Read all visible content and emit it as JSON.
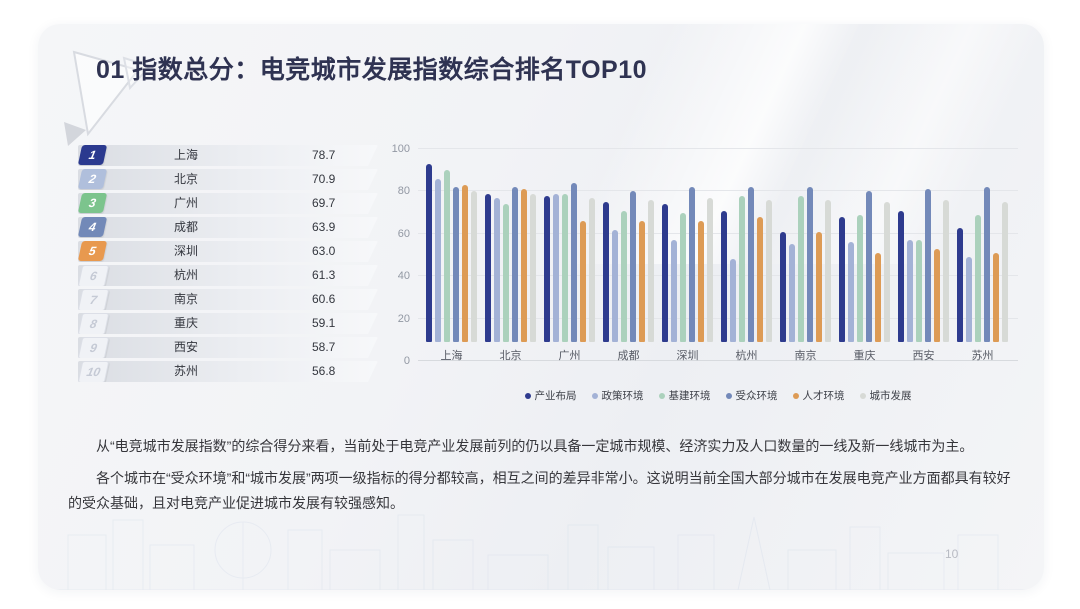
{
  "title": "01 指数总分：电竞城市发展指数综合排名TOP10",
  "page": {
    "number": "10"
  },
  "ranking": {
    "rows": [
      {
        "rank": "1",
        "city": "上海",
        "score": "78.7",
        "badge_bg": "#2b3a8f",
        "badge_fg": "#ffffff"
      },
      {
        "rank": "2",
        "city": "北京",
        "score": "70.9",
        "badge_bg": "#b0bfdc",
        "badge_fg": "#ffffff"
      },
      {
        "rank": "3",
        "city": "广州",
        "score": "69.7",
        "badge_bg": "#7cc48d",
        "badge_fg": "#ffffff"
      },
      {
        "rank": "4",
        "city": "成都",
        "score": "63.9",
        "badge_bg": "#7289b8",
        "badge_fg": "#ffffff"
      },
      {
        "rank": "5",
        "city": "深圳",
        "score": "63.0",
        "badge_bg": "#e8994f",
        "badge_fg": "#ffffff"
      },
      {
        "rank": "6",
        "city": "杭州",
        "score": "61.3",
        "badge_bg": "#f0f2f6",
        "badge_fg": "#c5cad5"
      },
      {
        "rank": "7",
        "city": "南京",
        "score": "60.6",
        "badge_bg": "#f0f2f6",
        "badge_fg": "#c5cad5"
      },
      {
        "rank": "8",
        "city": "重庆",
        "score": "59.1",
        "badge_bg": "#f0f2f6",
        "badge_fg": "#c5cad5"
      },
      {
        "rank": "9",
        "city": "西安",
        "score": "58.7",
        "badge_bg": "#f0f2f6",
        "badge_fg": "#c5cad5"
      },
      {
        "rank": "10",
        "city": "苏州",
        "score": "56.8",
        "badge_bg": "#f0f2f6",
        "badge_fg": "#c5cad5"
      }
    ]
  },
  "chart_data": {
    "type": "bar",
    "title": "",
    "categories": [
      "上海",
      "北京",
      "广州",
      "成都",
      "深圳",
      "杭州",
      "南京",
      "重庆",
      "西安",
      "苏州"
    ],
    "series": [
      {
        "name": "产业布局",
        "color": "#2e3b8e",
        "values": [
          84,
          70,
          69,
          66,
          65,
          62,
          52,
          59,
          62,
          54
        ]
      },
      {
        "name": "政策环境",
        "color": "#a3b2d6",
        "values": [
          77,
          68,
          70,
          53,
          48,
          39,
          46,
          47,
          48,
          40
        ]
      },
      {
        "name": "基建环境",
        "color": "#abd1bc",
        "values": [
          81,
          65,
          70,
          62,
          61,
          69,
          69,
          60,
          48,
          60
        ]
      },
      {
        "name": "受众环境",
        "color": "#7389b9",
        "values": [
          73,
          73,
          75,
          71,
          73,
          73,
          73,
          71,
          72,
          73
        ]
      },
      {
        "name": "人才环境",
        "color": "#dd9b55",
        "values": [
          74,
          72,
          57,
          57,
          57,
          59,
          52,
          42,
          44,
          42
        ]
      },
      {
        "name": "城市发展",
        "color": "#d7dad6",
        "values": [
          71,
          70,
          68,
          67,
          68,
          67,
          67,
          66,
          67,
          66
        ]
      }
    ],
    "ylim": [
      0,
      100
    ],
    "yticks": [
      0,
      20,
      40,
      60,
      80,
      100
    ],
    "grid": true,
    "legend_position": "bottom"
  },
  "paragraphs": [
    "从“电竞城市发展指数”的综合得分来看，当前处于电竞产业发展前列的仍以具备一定城市规模、经济实力及人口数量的一线及新一线城市为主。",
    "各个城市在“受众环境”和“城市发展”两项一级指标的得分都较高，相互之间的差异非常小。这说明当前全国大部分城市在发展电竞产业方面都具有较好的受众基础，且对电竞产业促进城市发展有较强感知。"
  ]
}
